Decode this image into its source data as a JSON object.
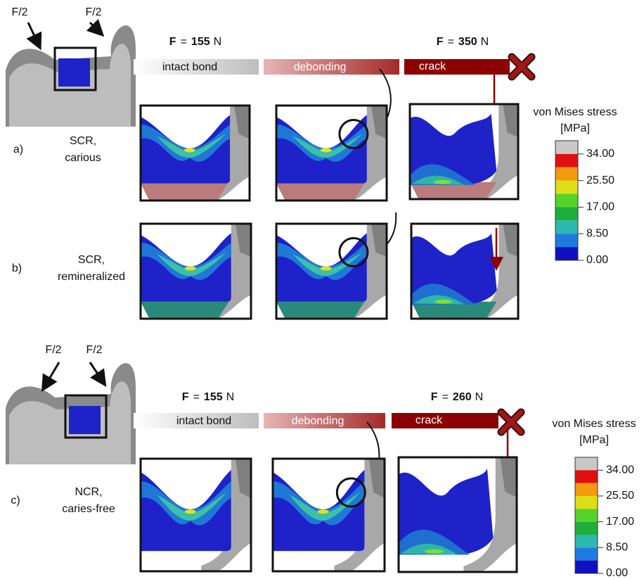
{
  "sections": [
    {
      "loads": [
        "F/2",
        "F/2"
      ],
      "forces": [
        {
          "symbol": "F",
          "eq": "=",
          "value": "155",
          "unit": "N"
        },
        {
          "symbol": "F",
          "eq": "=",
          "value": "350",
          "unit": "N"
        }
      ],
      "phases": [
        "intact bond",
        "debonding",
        "crack"
      ],
      "legend": {
        "title": [
          "von Mises stress",
          "[MPa]"
        ],
        "ticks": [
          "34.00",
          "25.50",
          "17.00",
          "8.50",
          "0.00"
        ]
      },
      "rows": [
        {
          "label": "a)",
          "name": [
            "SCR,",
            "carious"
          ]
        },
        {
          "label": "b)",
          "name": [
            "SCR,",
            "remineralized"
          ]
        }
      ]
    },
    {
      "loads": [
        "F/2",
        "F/2"
      ],
      "forces": [
        {
          "symbol": "F",
          "eq": "=",
          "value": "155",
          "unit": "N"
        },
        {
          "symbol": "F",
          "eq": "=",
          "value": "260",
          "unit": "N"
        }
      ],
      "phases": [
        "intact bond",
        "debonding",
        "crack"
      ],
      "legend": {
        "title": [
          "von Mises stress",
          "[MPa]"
        ],
        "ticks": [
          "34.00",
          "25.50",
          "17.00",
          "8.50",
          "0.00"
        ]
      },
      "rows": [
        {
          "label": "c)",
          "name": [
            "NCR,",
            "caries-free"
          ]
        }
      ]
    }
  ]
}
